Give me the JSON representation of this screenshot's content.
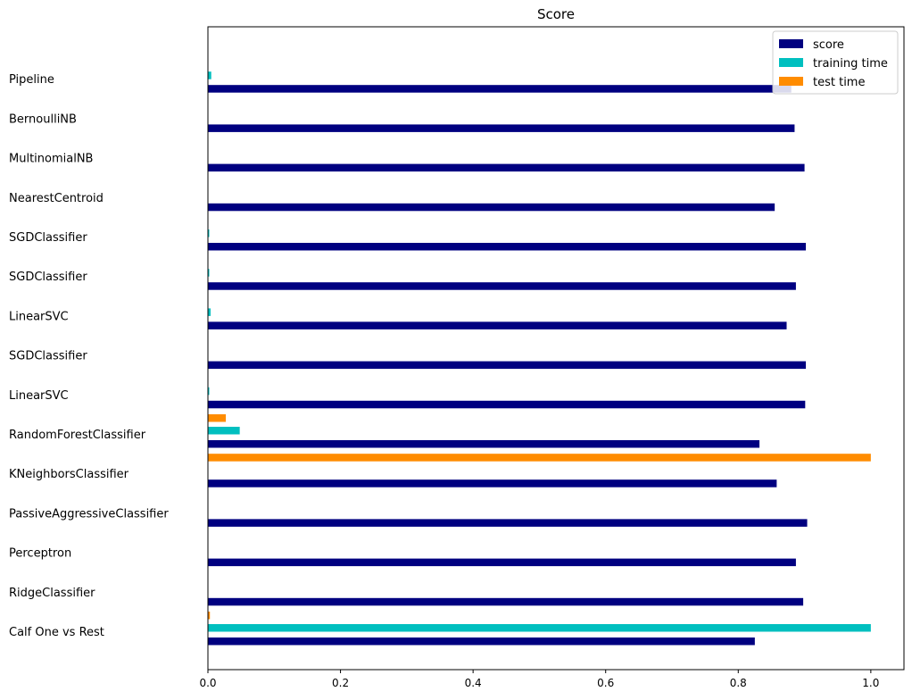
{
  "chart_data": {
    "type": "bar",
    "orientation": "horizontal",
    "title": "Score",
    "xlabel": "",
    "ylabel": "",
    "xlim": [
      0,
      1.05
    ],
    "xticks": [
      "0.0",
      "0.2",
      "0.4",
      "0.6",
      "0.8",
      "1.0"
    ],
    "grid": false,
    "legend_position": "top-right",
    "categories": [
      "Pipeline",
      "BernoulliNB",
      "MultinomialNB",
      "NearestCentroid",
      "SGDClassifier",
      "SGDClassifier",
      "LinearSVC",
      "SGDClassifier",
      "LinearSVC",
      "RandomForestClassifier",
      "KNeighborsClassifier",
      "PassiveAggressiveClassifier",
      "Perceptron",
      "RidgeClassifier",
      "Calf One vs Rest"
    ],
    "series": [
      {
        "name": "score",
        "color": "#000080",
        "values": [
          0.88,
          0.885,
          0.9,
          0.855,
          0.902,
          0.887,
          0.873,
          0.902,
          0.901,
          0.832,
          0.858,
          0.904,
          0.887,
          0.898,
          0.825
        ]
      },
      {
        "name": "training time",
        "color": "#00bfbf",
        "values": [
          0.005,
          0.0005,
          0.0005,
          0.0005,
          0.002,
          0.002,
          0.004,
          0.0005,
          0.002,
          0.048,
          0.0005,
          0.0005,
          0.0005,
          0.0005,
          1.0
        ]
      },
      {
        "name": "test time",
        "color": "#ff8c00",
        "values": [
          0.0,
          0.0,
          0.0,
          0.0,
          0.0,
          0.0,
          0.0,
          0.0,
          0.0,
          0.027,
          1.0,
          0.0,
          0.0,
          0.0,
          0.003
        ]
      }
    ]
  }
}
